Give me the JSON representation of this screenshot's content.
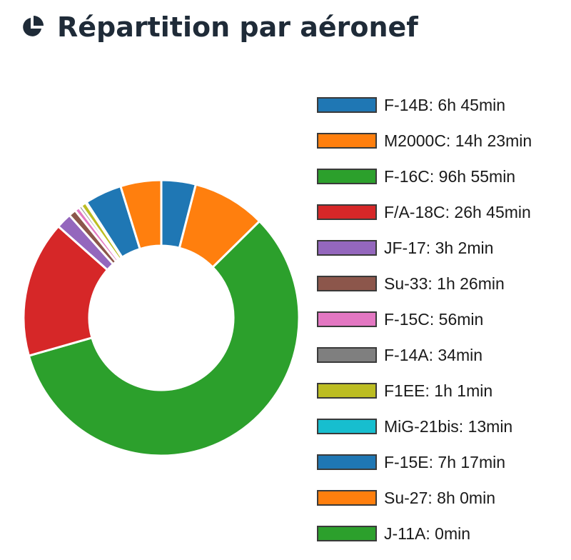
{
  "header": {
    "icon": "pie-chart-icon",
    "title": "Répartition par aéronef"
  },
  "chart_data": {
    "type": "pie",
    "variant": "donut",
    "title": "Répartition par aéronef",
    "unit": "minutes",
    "legend_position": "right",
    "slices": [
      {
        "name": "F-14B",
        "label": "F-14B: 6h 45min",
        "value": 405,
        "color": "#1f77b4"
      },
      {
        "name": "M2000C",
        "label": "M2000C: 14h 23min",
        "value": 863,
        "color": "#ff7f0e"
      },
      {
        "name": "F-16C",
        "label": "F-16C: 96h 55min",
        "value": 5815,
        "color": "#2ca02c"
      },
      {
        "name": "F/A-18C",
        "label": "F/A-18C: 26h 45min",
        "value": 1605,
        "color": "#d62728"
      },
      {
        "name": "JF-17",
        "label": "JF-17: 3h 2min",
        "value": 182,
        "color": "#9467bd"
      },
      {
        "name": "Su-33",
        "label": "Su-33: 1h 26min",
        "value": 86,
        "color": "#8c564b"
      },
      {
        "name": "F-15C",
        "label": "F-15C: 56min",
        "value": 56,
        "color": "#e377c2"
      },
      {
        "name": "F-14A",
        "label": "F-14A: 34min",
        "value": 34,
        "color": "#7f7f7f"
      },
      {
        "name": "F1EE",
        "label": "F1EE: 1h 1min",
        "value": 61,
        "color": "#bcbd22"
      },
      {
        "name": "MiG-21bis",
        "label": "MiG-21bis: 13min",
        "value": 13,
        "color": "#17becf"
      },
      {
        "name": "F-15E",
        "label": "F-15E: 7h 17min",
        "value": 437,
        "color": "#1f77b4"
      },
      {
        "name": "Su-27",
        "label": "Su-27: 8h 0min",
        "value": 480,
        "color": "#ff7f0e"
      },
      {
        "name": "J-11A",
        "label": "J-11A: 0min",
        "value": 0,
        "color": "#2ca02c"
      }
    ]
  }
}
